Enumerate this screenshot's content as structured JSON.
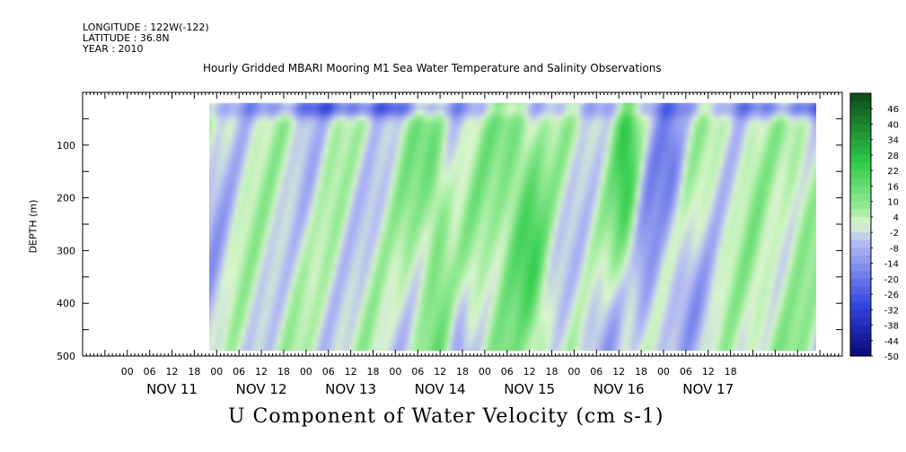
{
  "header": {
    "longitude": "LONGITUDE : 122W(-122)",
    "latitude": "LATITUDE : 36.8N",
    "year": "YEAR : 2010"
  },
  "chart_data": {
    "type": "heatmap",
    "title": "Hourly Gridded MBARI Mooring M1 Sea Water Temperature and Salinity Observations",
    "xlabel": "U Component of Water Velocity (cm s-1)",
    "ylabel": "DEPTH (m)",
    "ylim": [
      500,
      0
    ],
    "y_ticks": [
      100,
      200,
      300,
      400,
      500
    ],
    "x_hour_ticks": [
      "00",
      "06",
      "12",
      "18",
      "00",
      "06",
      "12",
      "18",
      "00",
      "06",
      "12",
      "18",
      "00",
      "06",
      "12",
      "18",
      "00",
      "06",
      "12",
      "18",
      "00",
      "06",
      "12",
      "18",
      "00",
      "06",
      "12",
      "18"
    ],
    "x_day_labels": [
      "NOV 11",
      "NOV 12",
      "NOV 13",
      "NOV 14",
      "NOV 15",
      "NOV 16",
      "NOV 17"
    ],
    "colorbar_ticks": [
      46,
      40,
      34,
      28,
      22,
      16,
      10,
      4,
      -2,
      -8,
      -14,
      -20,
      -26,
      -32,
      -38,
      -44,
      -50
    ],
    "colorbar_range": [
      -50,
      52
    ],
    "data_depth_range": [
      20,
      490
    ],
    "data_start_hour": 22,
    "data_end_hour": 185,
    "colors": {
      "negative_strong": "#08087a",
      "negative_mid": "#3347e0",
      "negative_light": "#b4bbf3",
      "near_zero": "#d9f5cc",
      "positive_light": "#96ea95",
      "positive_mid": "#2ecc4a",
      "positive_strong": "#0b4a1a"
    },
    "grid": false
  }
}
